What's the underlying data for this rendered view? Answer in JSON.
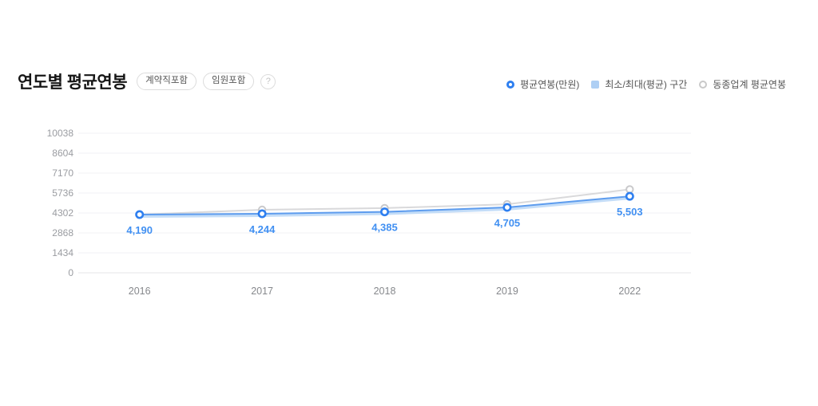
{
  "header": {
    "title": "연도별 평균연봉",
    "badges": [
      "계약직포함",
      "임원포함"
    ],
    "help_icon": "?"
  },
  "legend": [
    {
      "label": "평균연봉(만원)",
      "marker": "ring",
      "color": "#2e7ff0"
    },
    {
      "label": "최소/최대(평균) 구간",
      "marker": "square",
      "color": "#aecff4"
    },
    {
      "label": "동종업계 평균연봉",
      "marker": "ring",
      "color": "#c9c9c9"
    }
  ],
  "chart_data": {
    "type": "line",
    "categories": [
      "2016",
      "2017",
      "2018",
      "2019",
      "2022"
    ],
    "series": [
      {
        "name": "평균연봉(만원)",
        "values": [
          4190,
          4244,
          4385,
          4705,
          5503
        ],
        "labels": [
          "4,190",
          "4,244",
          "4,385",
          "4,705",
          "5,503"
        ],
        "line_color": "#5d9cee",
        "marker_color": "#2e7ff0",
        "label_color": "#4190f2"
      },
      {
        "name": "동종업계 평균연봉",
        "values": [
          4190,
          4530,
          4650,
          4930,
          6000
        ],
        "line_color": "#d9d9db",
        "marker_color": "#c9c9cb"
      },
      {
        "name": "최소/최대(평균) 구간",
        "band_min": [
          3960,
          4014,
          4155,
          4475,
          5273
        ],
        "band_max": [
          4190,
          4244,
          4385,
          4705,
          5503
        ],
        "fill_color": "#b5d4f6"
      }
    ],
    "yticks": [
      0,
      1434,
      2868,
      4302,
      5736,
      7170,
      8604,
      10038
    ],
    "ylim": [
      0,
      10038
    ],
    "grid": true,
    "grid_color": "#f1f1f4",
    "axis_line_color": "#e4e4e7",
    "legend_position": "top-right"
  }
}
